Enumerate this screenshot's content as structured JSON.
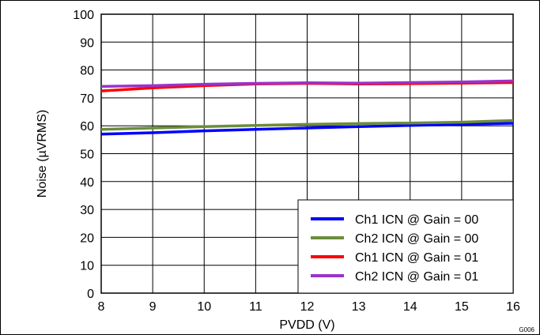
{
  "chart_data": {
    "type": "line",
    "xlabel": "PVDD (V)",
    "ylabel": "Noise (µVRMS)",
    "xlim": [
      8,
      16
    ],
    "ylim": [
      0,
      100
    ],
    "x_ticks": [
      8,
      9,
      10,
      11,
      12,
      13,
      14,
      15,
      16
    ],
    "y_ticks": [
      0,
      10,
      20,
      30,
      40,
      50,
      60,
      70,
      80,
      90,
      100
    ],
    "grid": true,
    "legend_position": "bottom-right",
    "corner_label": "G006",
    "series": [
      {
        "name": "Ch1 ICN @ Gain = 00",
        "color": "#0000ff",
        "points": [
          [
            8,
            57
          ],
          [
            9,
            57.5
          ],
          [
            10,
            58.2
          ],
          [
            11,
            58.7
          ],
          [
            12,
            59.2
          ],
          [
            13,
            59.7
          ],
          [
            14,
            60.1
          ],
          [
            15,
            60.5
          ],
          [
            16,
            60.9
          ]
        ]
      },
      {
        "name": "Ch2 ICN @ Gain = 00",
        "color": "#6b8e3a",
        "points": [
          [
            8,
            58.7
          ],
          [
            9,
            59.2
          ],
          [
            10,
            59.7
          ],
          [
            11,
            60.1
          ],
          [
            12,
            60.5
          ],
          [
            13,
            60.8
          ],
          [
            14,
            61
          ],
          [
            15,
            61.3
          ],
          [
            16,
            61.9
          ]
        ]
      },
      {
        "name": "Ch1 ICN @ Gain = 01",
        "color": "#ff0000",
        "points": [
          [
            8,
            72.5
          ],
          [
            9,
            73.6
          ],
          [
            10,
            74.4
          ],
          [
            11,
            75
          ],
          [
            12,
            75.2
          ],
          [
            13,
            75
          ],
          [
            14,
            75.1
          ],
          [
            15,
            75.3
          ],
          [
            16,
            75.5
          ]
        ]
      },
      {
        "name": "Ch2 ICN @ Gain = 01",
        "color": "#9933cc",
        "points": [
          [
            8,
            74.1
          ],
          [
            9,
            74.4
          ],
          [
            10,
            74.9
          ],
          [
            11,
            75.2
          ],
          [
            12,
            75.4
          ],
          [
            13,
            75.3
          ],
          [
            14,
            75.5
          ],
          [
            15,
            75.7
          ],
          [
            16,
            76.1
          ]
        ]
      }
    ]
  }
}
